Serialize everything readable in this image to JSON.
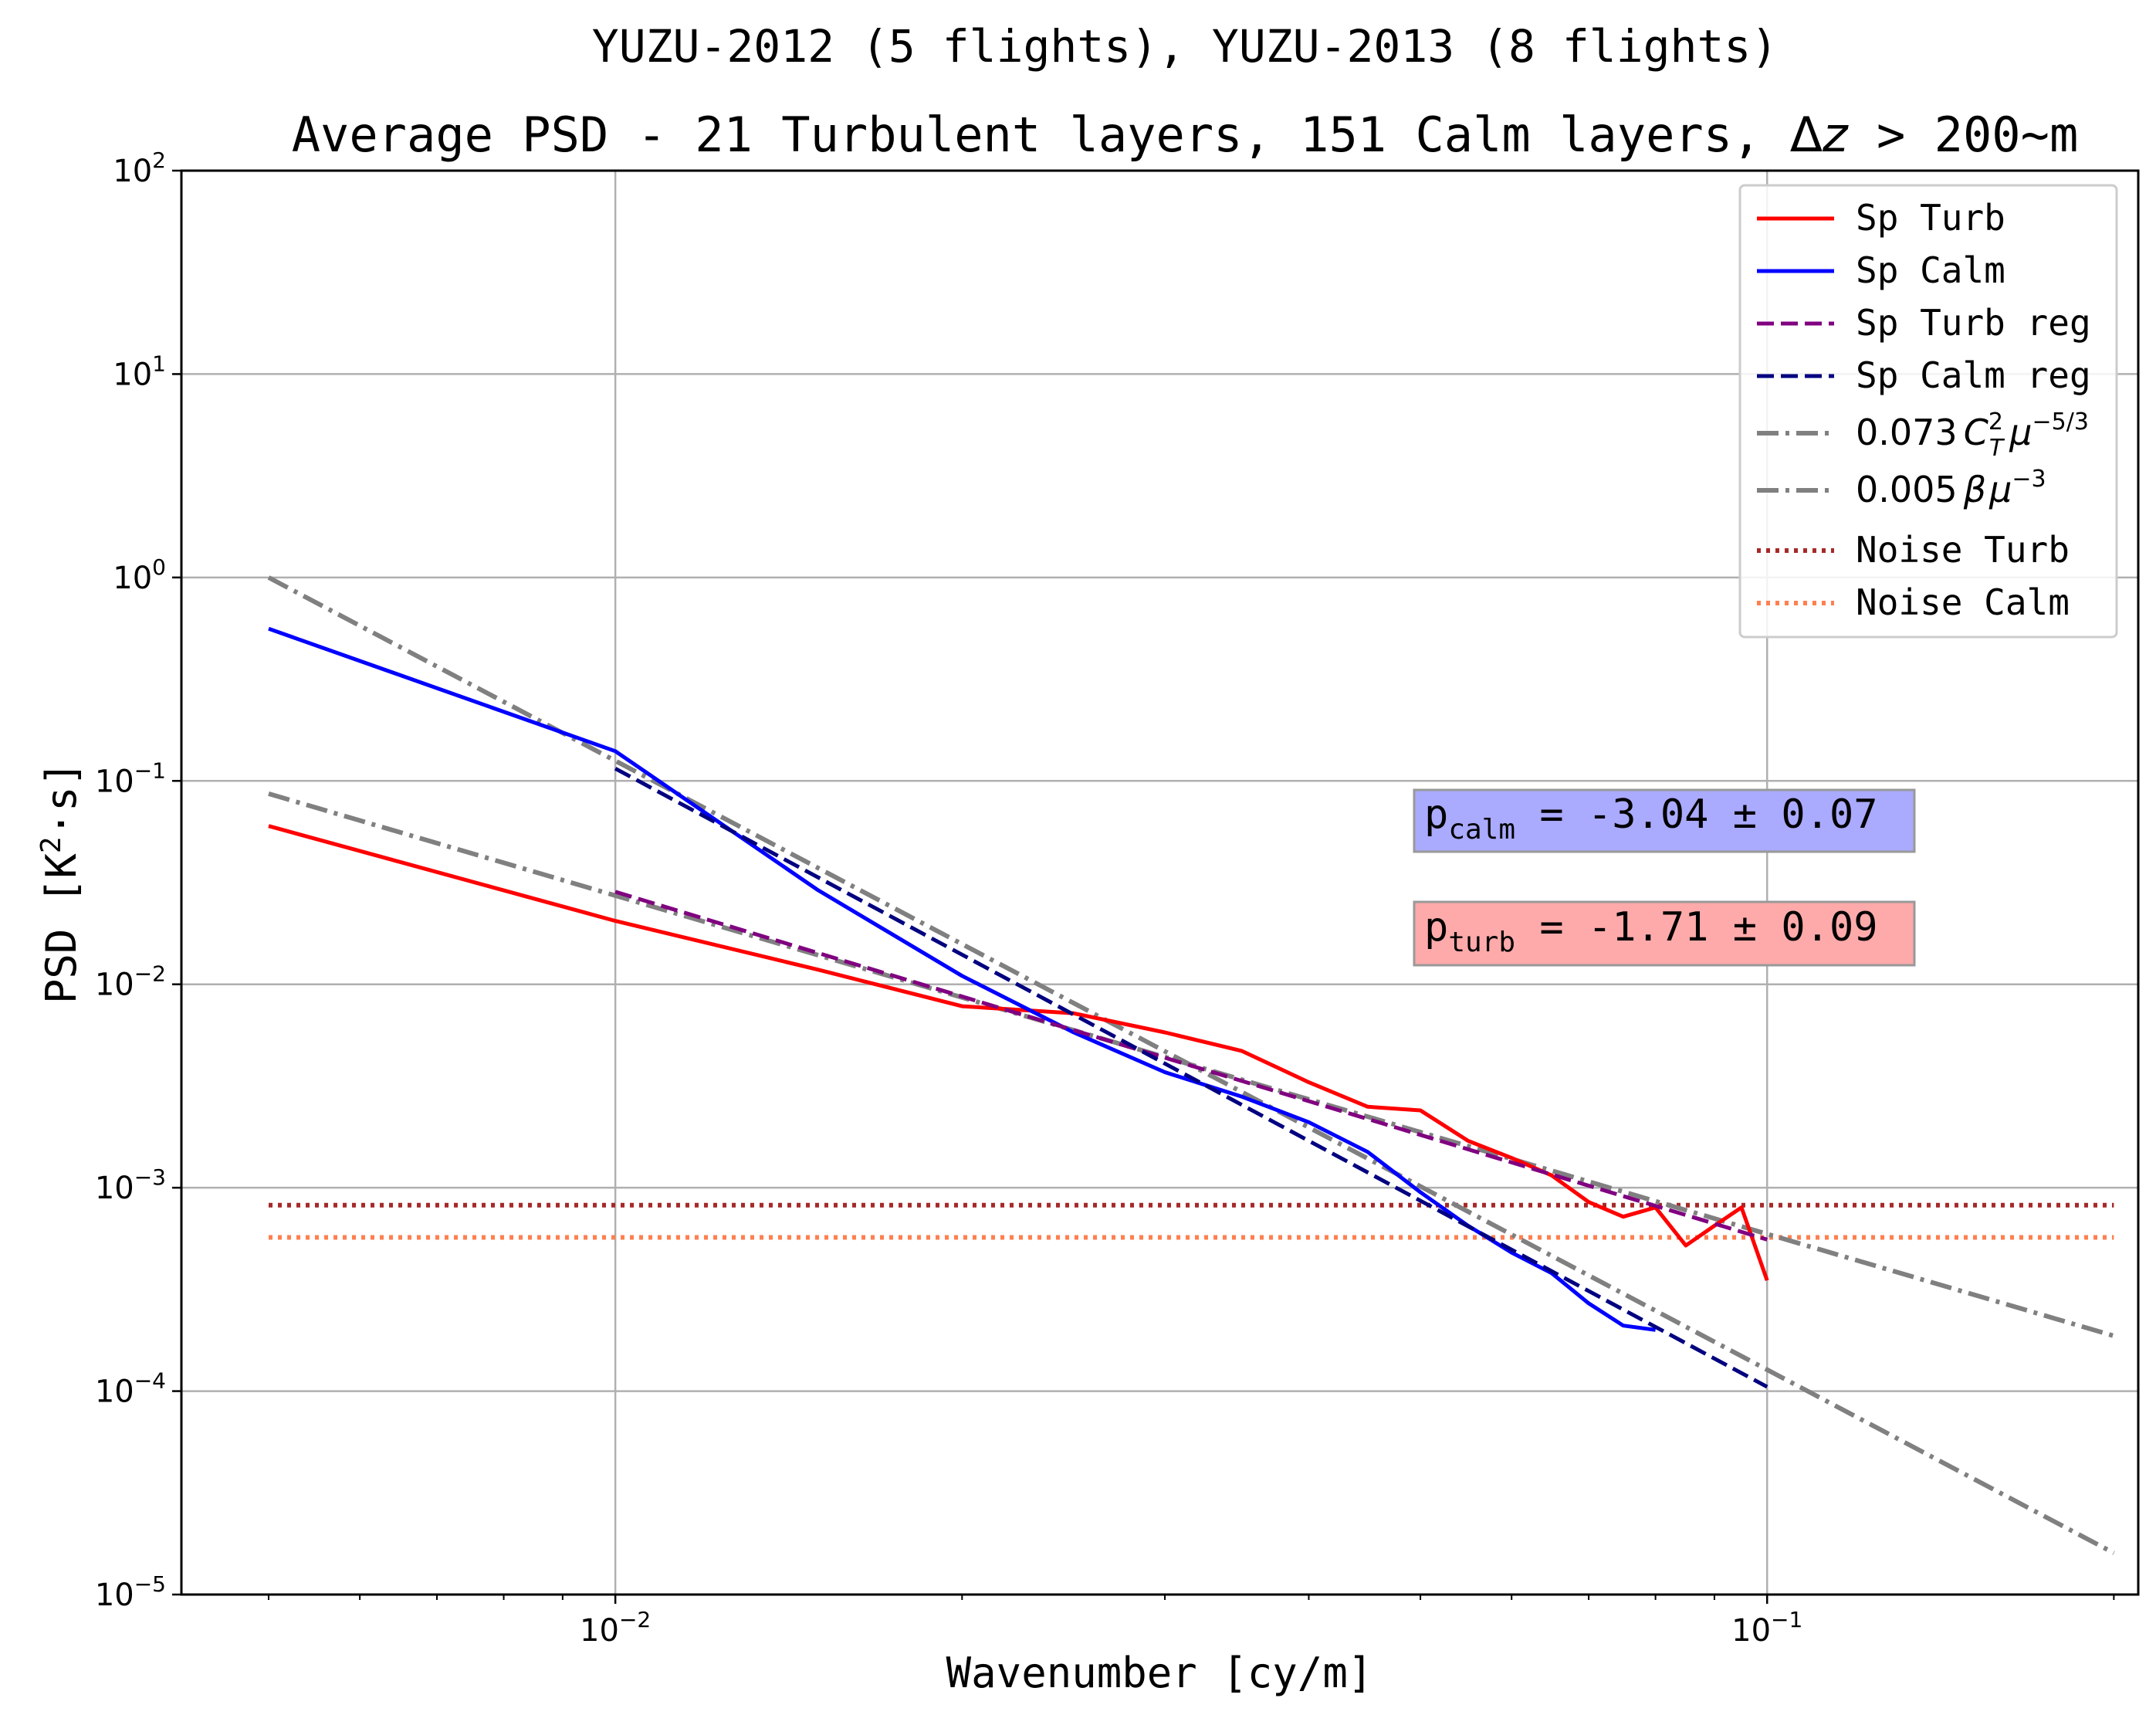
{
  "chart_data": {
    "type": "line",
    "scale": "log-log",
    "title_line1": "YUZU-2012 (5 flights),  YUZU-2013 (8 flights)",
    "title_line2_prefix": "Average PSD - 21 Turbulent layers,  151 Calm layers,  ",
    "title_line2_delta": "Δ",
    "title_line2_z": "z",
    "title_line2_suffix": " > 200~m",
    "xlabel": "Wavenumber  [cy/m]",
    "ylabel_prefix": "PSD  [K",
    "ylabel_sup": "2",
    "ylabel_suffix": "·s]",
    "xlim": [
      0.0042,
      0.21
    ],
    "ylim": [
      1e-05,
      100
    ],
    "grid": true,
    "legend_position": "upper right",
    "x_ticks": [
      {
        "value": 0.01,
        "base": "10",
        "exp": "−2"
      },
      {
        "value": 0.1,
        "base": "10",
        "exp": "−1"
      }
    ],
    "y_ticks": [
      {
        "value": 1e-05,
        "base": "10",
        "exp": "−5"
      },
      {
        "value": 0.0001,
        "base": "10",
        "exp": "−4"
      },
      {
        "value": 0.001,
        "base": "10",
        "exp": "−3"
      },
      {
        "value": 0.01,
        "base": "10",
        "exp": "−2"
      },
      {
        "value": 0.1,
        "base": "10",
        "exp": "−1"
      },
      {
        "value": 1,
        "base": "10",
        "exp": "0"
      },
      {
        "value": 10,
        "base": "10",
        "exp": "1"
      },
      {
        "value": 100,
        "base": "10",
        "exp": "2"
      }
    ],
    "series": [
      {
        "key": "sp_turb",
        "name": "Sp Turb",
        "color": "#ff0000",
        "style": "solid",
        "x": [
          0.005,
          0.01,
          0.015,
          0.02,
          0.025,
          0.03,
          0.035,
          0.04,
          0.045,
          0.05,
          0.055,
          0.06,
          0.065,
          0.07,
          0.075,
          0.08,
          0.085,
          0.09,
          0.095,
          0.1
        ],
        "y": [
          0.06,
          0.0205,
          0.0118,
          0.0078,
          0.0072,
          0.0058,
          0.0047,
          0.0033,
          0.0025,
          0.0024,
          0.0017,
          0.0014,
          0.00115,
          0.00085,
          0.00072,
          0.0008,
          0.00052,
          0.00065,
          0.0008,
          0.00035
        ]
      },
      {
        "key": "sp_calm",
        "name": "Sp Calm",
        "color": "#0000ff",
        "style": "solid",
        "x": [
          0.005,
          0.01,
          0.015,
          0.02,
          0.025,
          0.03,
          0.035,
          0.04,
          0.045,
          0.05,
          0.055,
          0.06,
          0.065,
          0.07,
          0.075,
          0.08
        ],
        "y": [
          0.56,
          0.14,
          0.029,
          0.011,
          0.0058,
          0.0037,
          0.0028,
          0.0021,
          0.0015,
          0.00095,
          0.00065,
          0.00048,
          0.00038,
          0.00027,
          0.00021,
          0.0002
        ]
      },
      {
        "key": "sp_turb_reg",
        "name": "Sp Turb reg",
        "color": "#800080",
        "style": "dashed",
        "x": [
          0.01,
          0.1
        ],
        "y": [
          0.0285,
          0.000556
        ]
      },
      {
        "key": "sp_calm_reg",
        "name": "Sp Calm reg",
        "color": "#000080",
        "style": "dashed",
        "x": [
          0.01,
          0.1
        ],
        "y": [
          0.115,
          0.000105
        ]
      },
      {
        "key": "kolmogorov",
        "name_prefix": "0.073",
        "name_c": "C",
        "name_c_sup": "2",
        "name_c_sub": "T",
        "name_mu": "μ",
        "name_mu_sup": "−5/3",
        "color": "#808080",
        "style": "dashdot",
        "x": [
          0.005,
          0.2
        ],
        "y": [
          0.0865,
          0.000187
        ]
      },
      {
        "key": "buoyancy",
        "name_prefix": "0.005",
        "name_beta": "β",
        "name_mu": "μ",
        "name_mu_sup": "−3",
        "color": "#808080",
        "style": "dashdot",
        "x": [
          0.005,
          0.2
        ],
        "y": [
          1.0,
          1.6e-05
        ]
      },
      {
        "key": "noise_turb",
        "name": "Noise Turb",
        "color": "#a52a2a",
        "style": "dotted",
        "x": [
          0.005,
          0.2
        ],
        "y": [
          0.00082,
          0.00082
        ]
      },
      {
        "key": "noise_calm",
        "name": "Noise Calm",
        "color": "#ff7f50",
        "style": "dotted",
        "x": [
          0.005,
          0.2
        ],
        "y": [
          0.00057,
          0.00057
        ]
      }
    ],
    "annotations": [
      {
        "key": "p_calm",
        "base": "p",
        "sub": "calm",
        "text": " = -3.04 ± 0.07",
        "bg": "#aaaaff",
        "x": 0.038,
        "y": 0.063
      },
      {
        "key": "p_turb",
        "base": "p",
        "sub": "turb",
        "text": " = -1.71 ± 0.09",
        "bg": "#ffaaaa",
        "x": 0.038,
        "y": 0.017
      }
    ]
  }
}
